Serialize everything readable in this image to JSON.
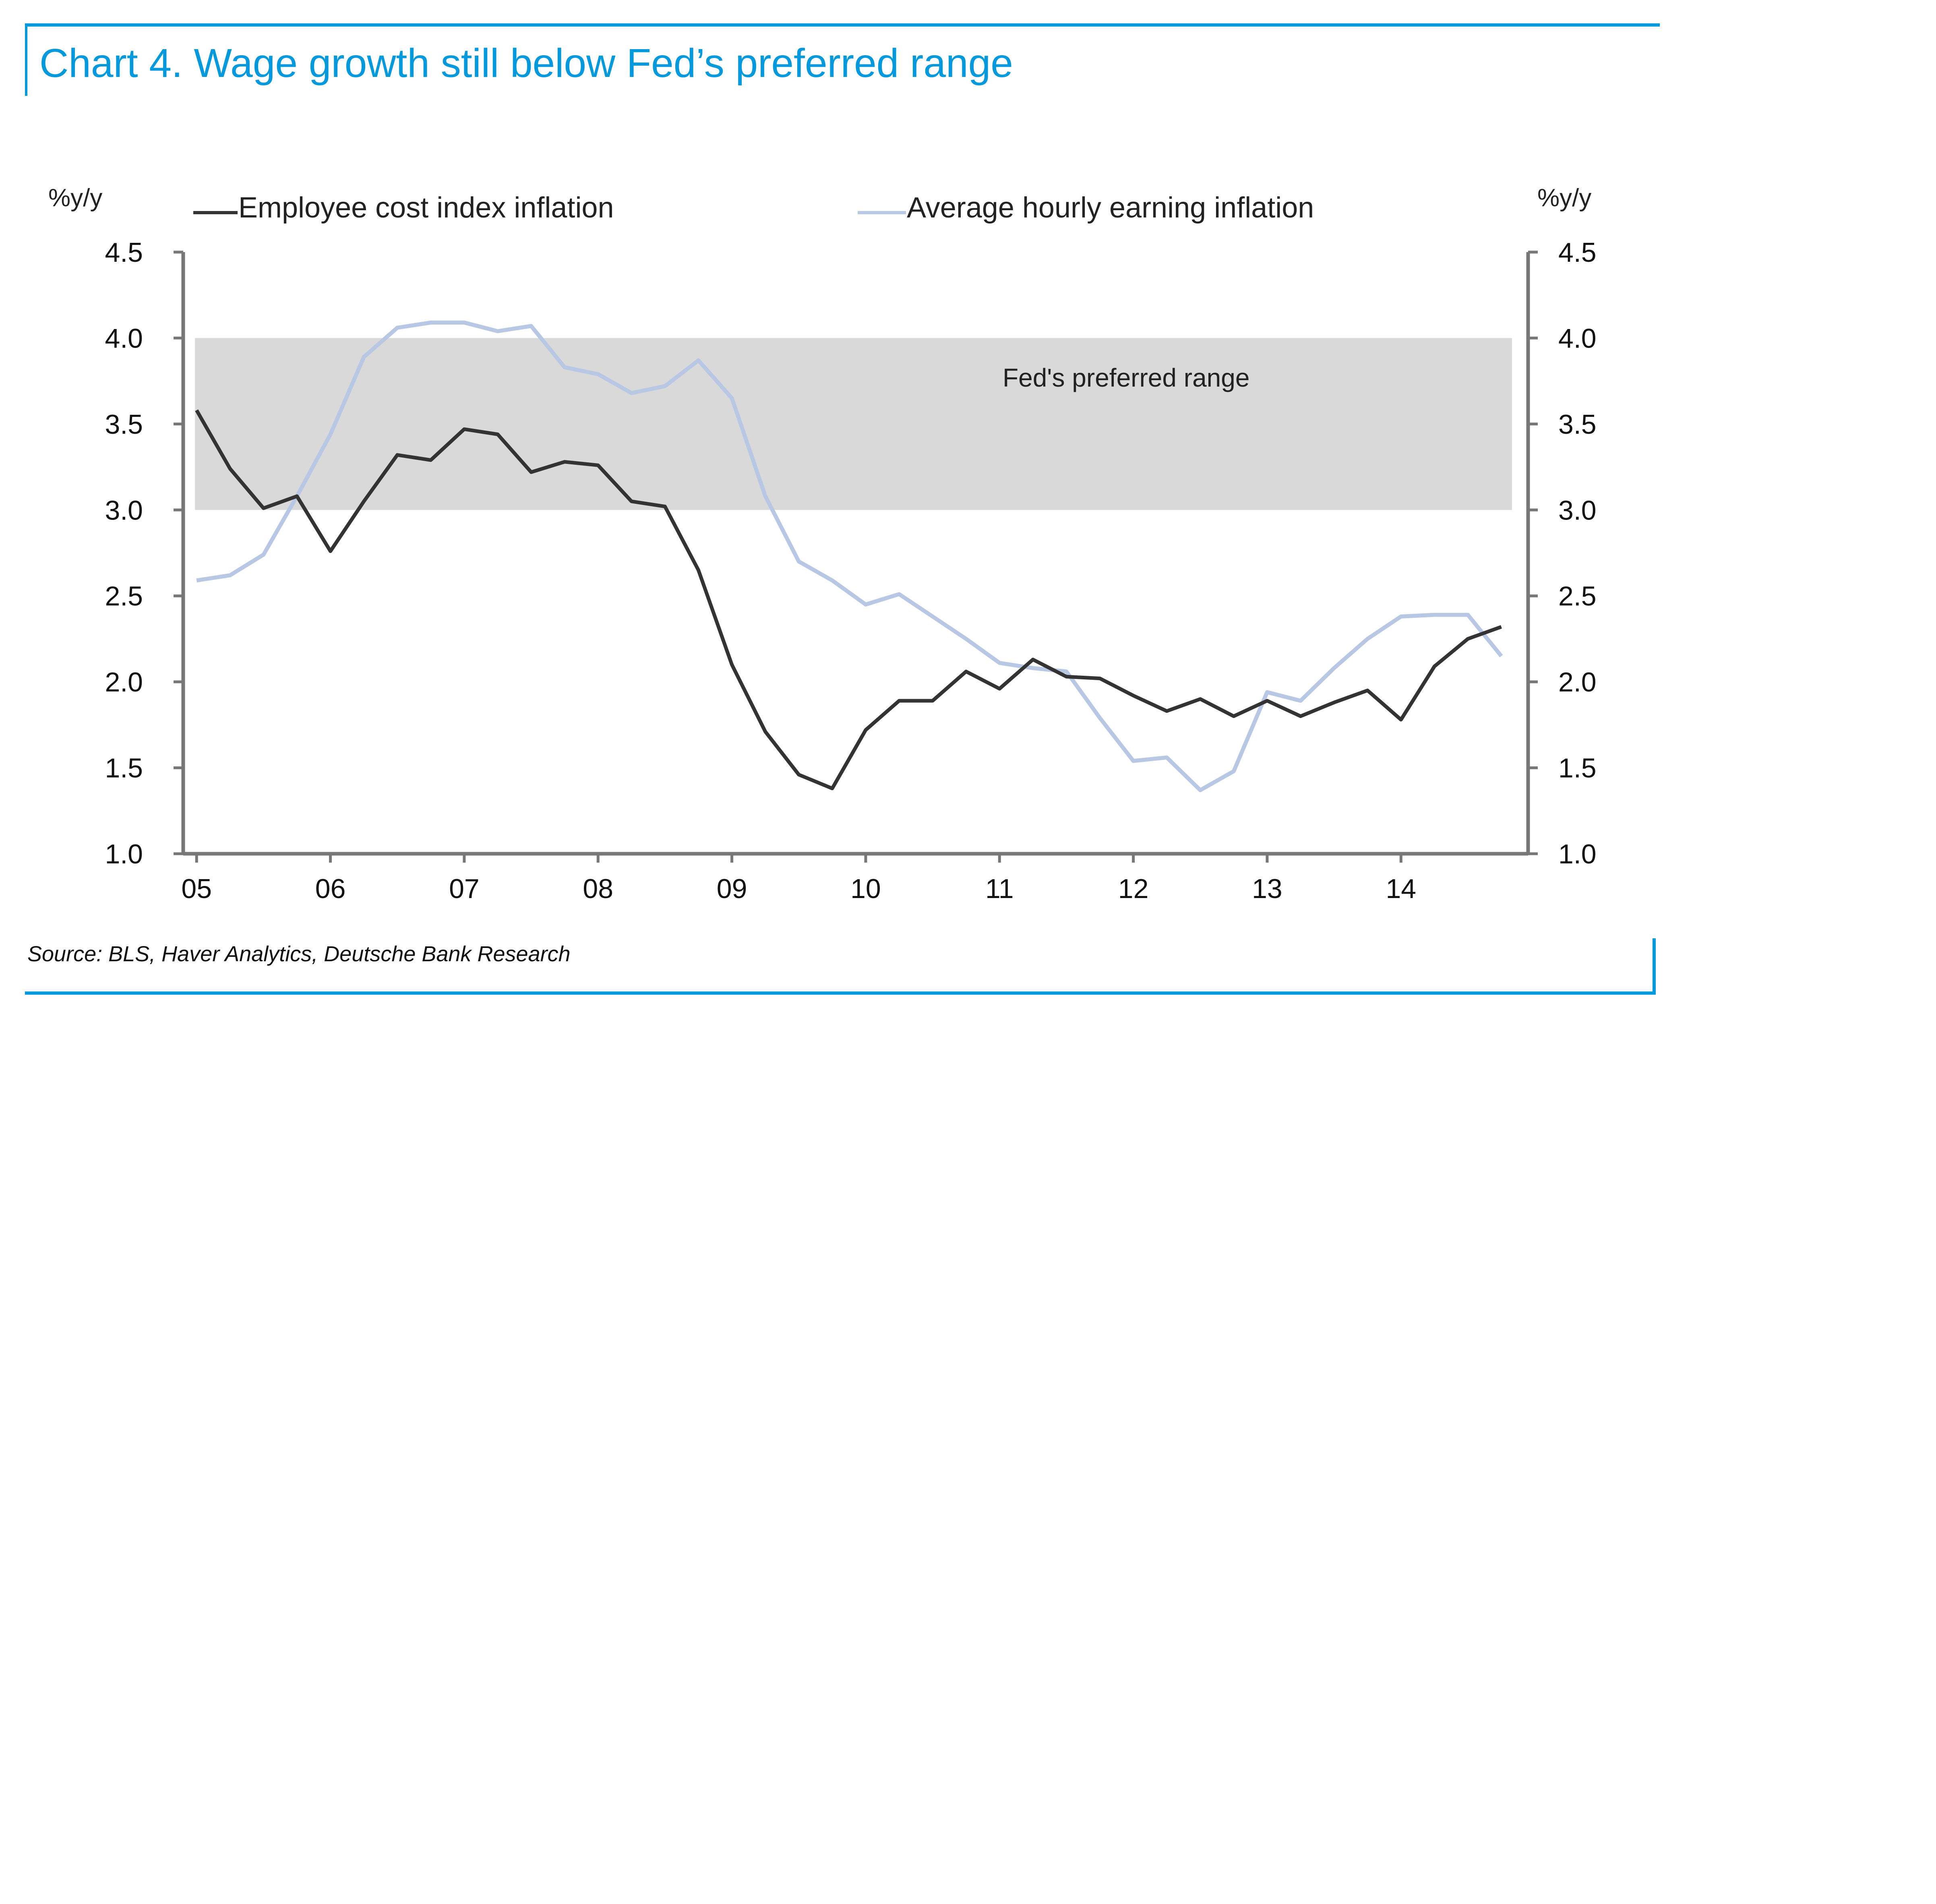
{
  "title": "Chart 4. Wage growth still below Fed’s preferred range",
  "source": "Source: BLS, Haver Analytics, Deutsche Bank Research",
  "colors": {
    "accent": "#0099dd",
    "eci_line": "#333333",
    "ahe_line": "#b8c8e4",
    "band": "#d9d9d9",
    "axis": "#777777"
  },
  "chart_data": {
    "type": "line",
    "title": "Chart 4. Wage growth still below Fed’s preferred range",
    "ylabel_left": "%y/y",
    "ylabel_right": "%y/y",
    "xlabel": "",
    "ylim": [
      1.0,
      4.5
    ],
    "yticks": [
      "1.0",
      "1.5",
      "2.0",
      "2.5",
      "3.0",
      "3.5",
      "4.0",
      "4.5"
    ],
    "ytick_values": [
      1.0,
      1.5,
      2.0,
      2.5,
      3.0,
      3.5,
      4.0,
      4.5
    ],
    "xticks": [
      "05",
      "06",
      "07",
      "08",
      "09",
      "10",
      "11",
      "12",
      "13",
      "14"
    ],
    "xtick_values": [
      2005.0,
      2006.0,
      2007.0,
      2008.0,
      2009.0,
      2010.0,
      2011.0,
      2012.0,
      2013.0,
      2014.0
    ],
    "xlim": [
      2004.9,
      2014.95
    ],
    "grid": false,
    "legend_position": "top",
    "band": {
      "label": "Fed's preferred range",
      "from": 3.0,
      "to": 4.0
    },
    "x": [
      2005.0,
      2005.25,
      2005.5,
      2005.75,
      2006.0,
      2006.25,
      2006.5,
      2006.75,
      2007.0,
      2007.25,
      2007.5,
      2007.75,
      2008.0,
      2008.25,
      2008.5,
      2008.75,
      2009.0,
      2009.25,
      2009.5,
      2009.75,
      2010.0,
      2010.25,
      2010.5,
      2010.75,
      2011.0,
      2011.25,
      2011.5,
      2011.75,
      2012.0,
      2012.25,
      2012.5,
      2012.75,
      2013.0,
      2013.25,
      2013.5,
      2013.75,
      2014.0,
      2014.25,
      2014.5,
      2014.75
    ],
    "series": [
      {
        "name": "Employee cost index inflation",
        "values": [
          3.58,
          3.24,
          3.01,
          3.08,
          2.76,
          3.05,
          3.32,
          3.29,
          3.47,
          3.44,
          3.22,
          3.28,
          3.26,
          3.05,
          3.02,
          2.65,
          2.1,
          1.71,
          1.46,
          1.38,
          1.72,
          1.89,
          1.89,
          2.06,
          1.96,
          2.13,
          2.03,
          2.02,
          1.92,
          1.83,
          1.9,
          1.8,
          1.89,
          1.8,
          1.88,
          1.95,
          1.78,
          2.09,
          2.25,
          2.32
        ]
      },
      {
        "name": "Average hourly earning inflation",
        "values": [
          2.59,
          2.62,
          2.74,
          3.08,
          3.44,
          3.89,
          4.06,
          4.09,
          4.09,
          4.04,
          4.07,
          3.83,
          3.79,
          3.68,
          3.72,
          3.87,
          3.65,
          3.08,
          2.7,
          2.59,
          2.45,
          2.51,
          2.38,
          2.25,
          2.11,
          2.08,
          2.06,
          1.79,
          1.54,
          1.56,
          1.37,
          1.48,
          1.94,
          1.89,
          2.08,
          2.25,
          2.38,
          2.39,
          2.39,
          2.15
        ]
      }
    ]
  }
}
